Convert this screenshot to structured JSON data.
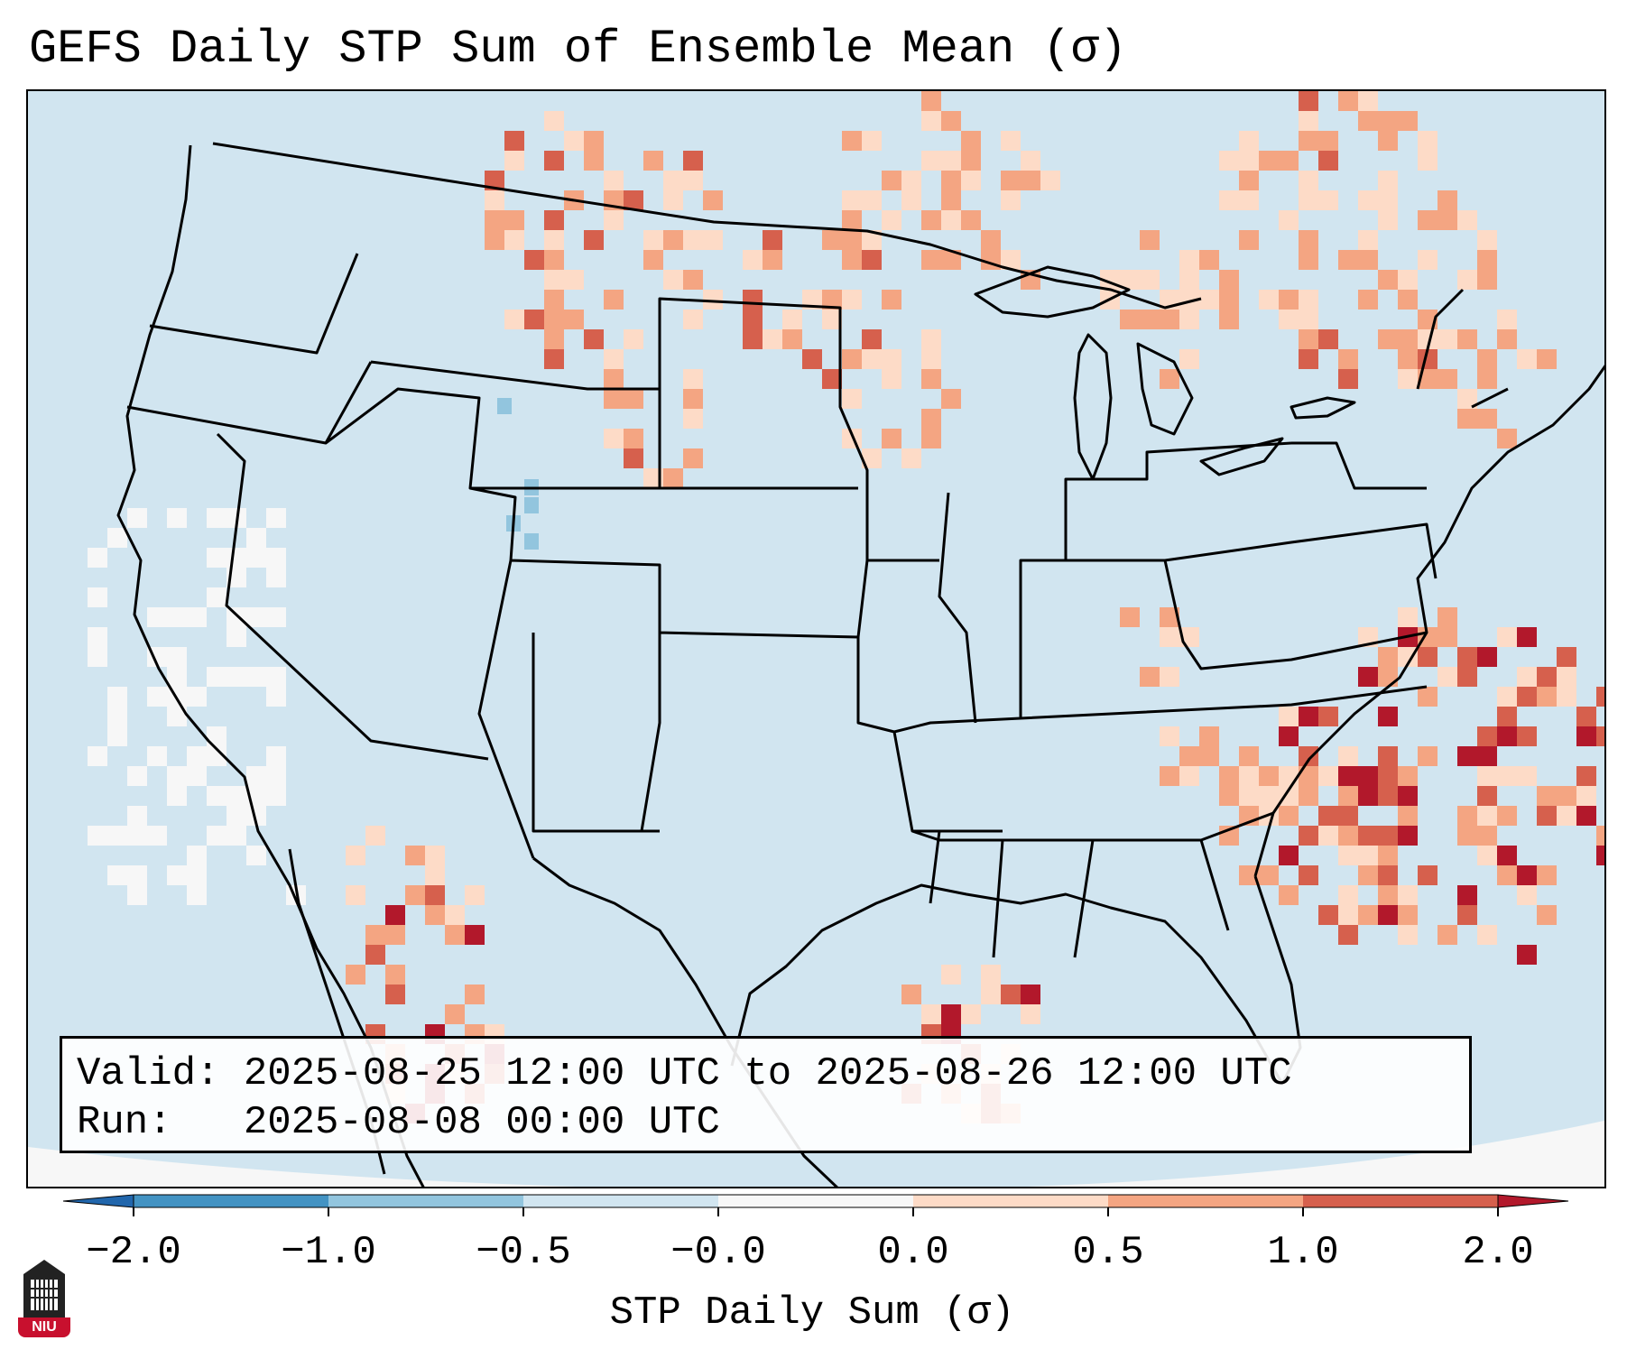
{
  "title": "GEFS Daily STP Sum of Ensemble Mean (σ)",
  "info": {
    "valid": "Valid: 2025-08-25 12:00 UTC to 2025-08-26 12:00 UTC",
    "run": "Run:   2025-08-08 00:00 UTC"
  },
  "colorbar": {
    "label": "STP Daily Sum (σ)",
    "ticks": [
      "−2.0",
      "−1.0",
      "−0.5",
      "−0.0",
      "0.0",
      "0.5",
      "1.0",
      "2.0"
    ],
    "colors": [
      "#4393c3",
      "#92c5de",
      "#d1e5f0",
      "#f7f7f7",
      "#fddbc7",
      "#f4a582",
      "#d6604d",
      "#b2182b"
    ],
    "extend_low": "#2166ac",
    "extend_high": "#b2182b"
  },
  "map": {
    "ocean": "#d1e5f0",
    "land": "#d1e5f0",
    "regions": "United States, southern Canada, northern Mexico, Gulf of Mexico, Caribbean"
  },
  "logo": {
    "text": "NIU",
    "icon": "niu-tower-icon"
  }
}
